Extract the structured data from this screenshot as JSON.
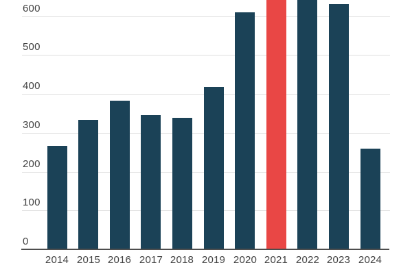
{
  "colors": {
    "bar": "#1b4257",
    "highlight_bar": "#e94745",
    "gridline": "#dedede",
    "axis_line": "#4d4d4d",
    "tick_text": "#414141",
    "background": "#ffffff"
  },
  "chart_data": {
    "type": "bar",
    "title": "",
    "xlabel": "",
    "ylabel": "",
    "categories": [
      "2014",
      "2015",
      "2016",
      "2017",
      "2018",
      "2019",
      "2020",
      "2021",
      "2022",
      "2023",
      "2024"
    ],
    "values": [
      265,
      331,
      381,
      344,
      337,
      416,
      608,
      680,
      641,
      629,
      258
    ],
    "highlighted_category": "2021",
    "clipped_categories": [
      "2021",
      "2022"
    ],
    "y_ticks": [
      0,
      100,
      200,
      300,
      400,
      500,
      600
    ],
    "ylim_visible": [
      0,
      641
    ],
    "grid": true,
    "legend": "none",
    "note_visible_fact": "top of chart is cropped; 2021 (red) bar and 2022 bar extend past the visible top edge"
  }
}
